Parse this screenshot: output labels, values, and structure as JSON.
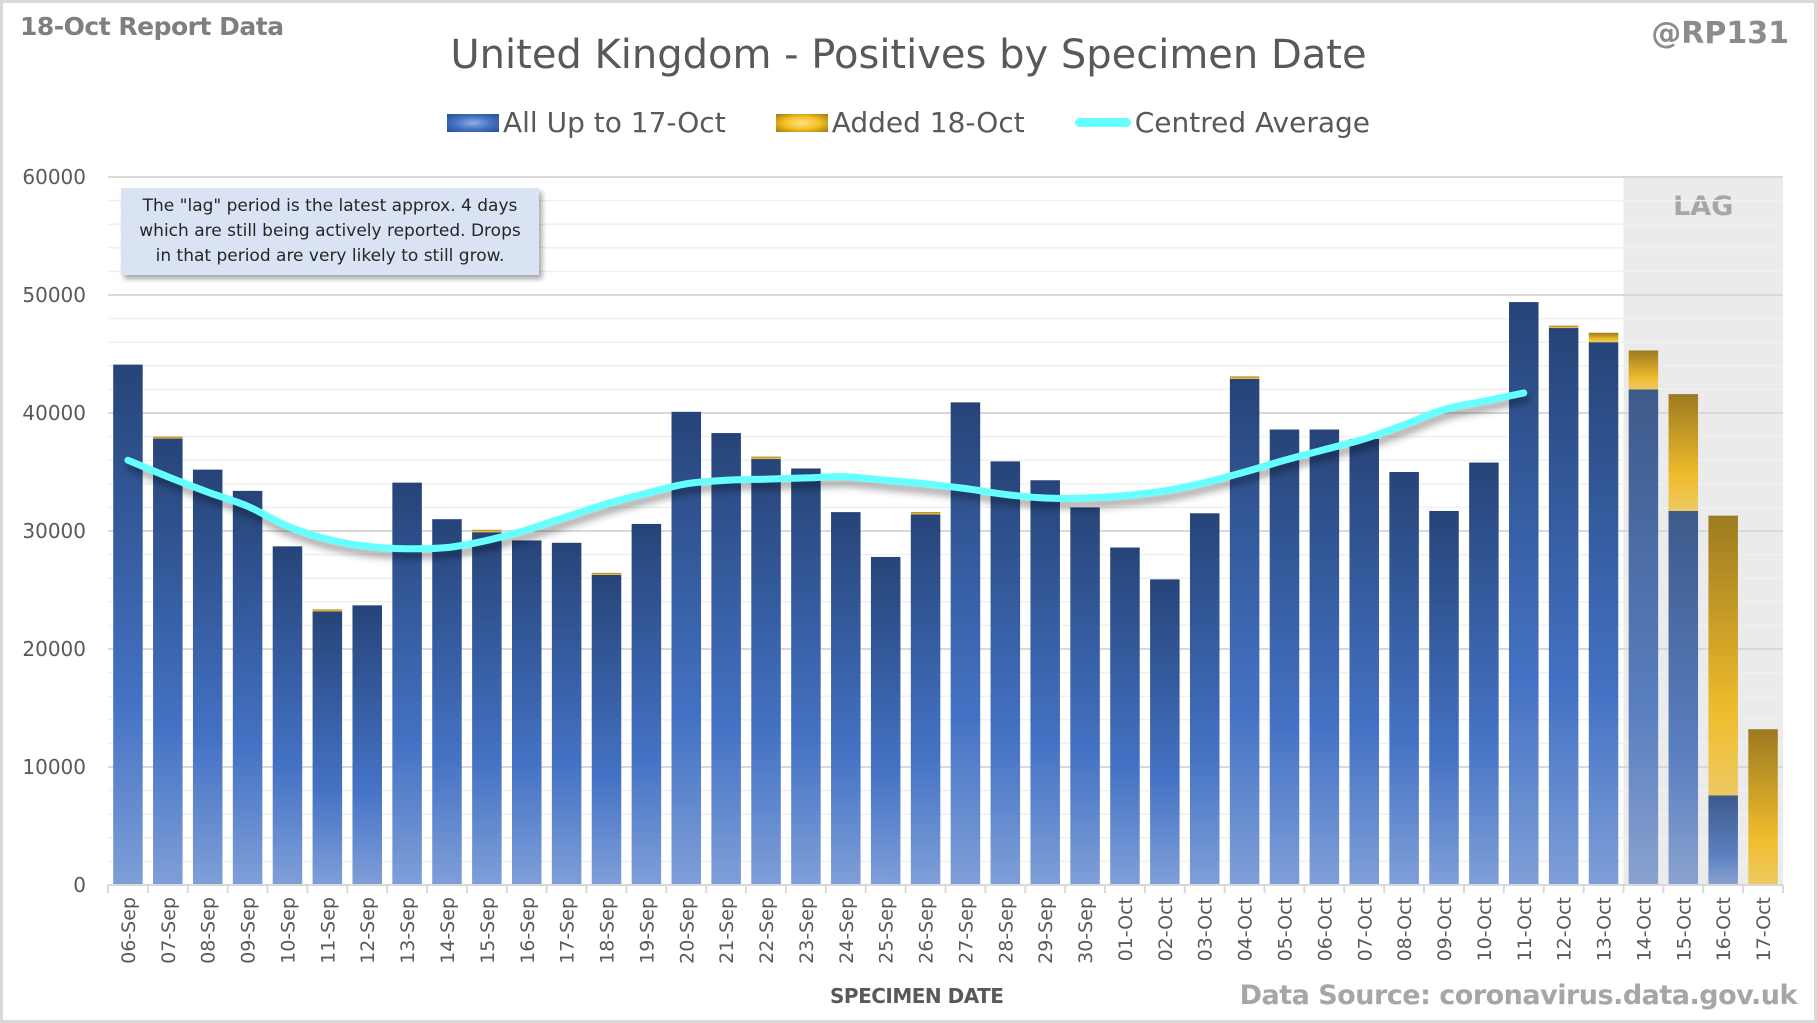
{
  "header": {
    "report_label": "18-Oct Report Data",
    "handle": "@RP131",
    "source": "Data Source: coronavirus.data.gov.uk"
  },
  "note": {
    "line1": "The \"lag\" period is the latest approx. 4 days",
    "line2": "which are still being actively reported.  Drops",
    "line3": "in that period are very likely to still grow."
  },
  "chart_data": {
    "type": "bar",
    "stacked": true,
    "title": "United Kingdom - Positives by Specimen Date",
    "xlabel": "SPECIMEN DATE",
    "ylabel": "",
    "ylim": [
      0,
      60000
    ],
    "yticks": [
      0,
      10000,
      20000,
      30000,
      40000,
      50000,
      60000
    ],
    "grid": true,
    "legend_position": "top",
    "lag_label": "LAG",
    "lag_categories": [
      "14-Oct",
      "15-Oct",
      "16-Oct",
      "17-Oct"
    ],
    "colors": {
      "previous": "#2f5597",
      "added": "#f2c01e",
      "average": "#66ffff",
      "lag_shade": "#ebebeb"
    },
    "categories": [
      "06-Sep",
      "07-Sep",
      "08-Sep",
      "09-Sep",
      "10-Sep",
      "11-Sep",
      "12-Sep",
      "13-Sep",
      "14-Sep",
      "15-Sep",
      "16-Sep",
      "17-Sep",
      "18-Sep",
      "19-Sep",
      "20-Sep",
      "21-Sep",
      "22-Sep",
      "23-Sep",
      "24-Sep",
      "25-Sep",
      "26-Sep",
      "27-Sep",
      "28-Sep",
      "29-Sep",
      "30-Sep",
      "01-Oct",
      "02-Oct",
      "03-Oct",
      "04-Oct",
      "05-Oct",
      "06-Oct",
      "07-Oct",
      "08-Oct",
      "09-Oct",
      "10-Oct",
      "11-Oct",
      "12-Oct",
      "13-Oct",
      "14-Oct",
      "15-Oct",
      "16-Oct",
      "17-Oct"
    ],
    "series": [
      {
        "name": "All Up to 17-Oct",
        "type": "bar",
        "values": [
          44100,
          37900,
          35200,
          33400,
          28700,
          23200,
          23700,
          34100,
          31000,
          29900,
          29200,
          29000,
          26300,
          30600,
          40100,
          38300,
          36100,
          35300,
          31600,
          27800,
          31400,
          40900,
          35900,
          34300,
          32000,
          28600,
          25900,
          31500,
          42900,
          38600,
          38600,
          37800,
          35000,
          31700,
          35800,
          49400,
          47200,
          46000,
          42000,
          31700,
          7600,
          0
        ]
      },
      {
        "name": "Added 18-Oct",
        "type": "bar",
        "values": [
          0,
          100,
          0,
          0,
          0,
          150,
          0,
          0,
          0,
          200,
          0,
          0,
          150,
          0,
          0,
          0,
          200,
          0,
          0,
          0,
          200,
          0,
          0,
          0,
          0,
          0,
          0,
          0,
          200,
          0,
          0,
          0,
          0,
          0,
          0,
          0,
          200,
          800,
          3300,
          9900,
          23700,
          13200
        ]
      },
      {
        "name": "Centred Average",
        "type": "line",
        "values": [
          36000,
          34600,
          33300,
          32100,
          30400,
          29300,
          28700,
          28500,
          28600,
          29200,
          30100,
          31200,
          32300,
          33200,
          34000,
          34300,
          34400,
          34500,
          34600,
          34300,
          34000,
          33600,
          33100,
          32800,
          32800,
          33000,
          33400,
          34100,
          35000,
          36000,
          36900,
          37800,
          39000,
          40300,
          41000,
          41700,
          null,
          null,
          null,
          null,
          null,
          null
        ]
      }
    ]
  }
}
